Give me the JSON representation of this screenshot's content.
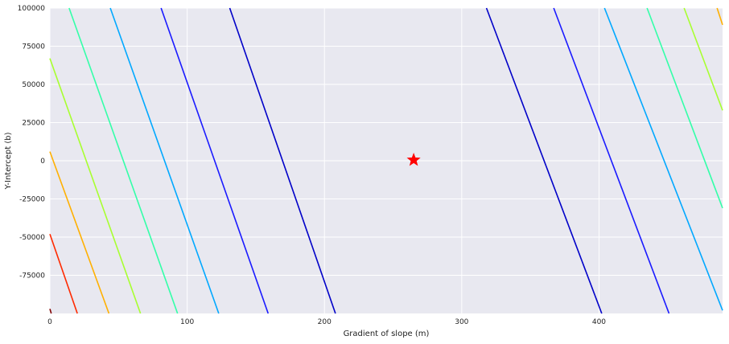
{
  "chart_data": {
    "type": "contour",
    "title": "",
    "xlabel": "Gradient of slope (m)",
    "ylabel": "Y-Intercept (b)",
    "xlim": [
      0,
      490
    ],
    "ylim": [
      -100000,
      100000
    ],
    "x_ticks": [
      0,
      100,
      200,
      300,
      400
    ],
    "x_tick_labels": [
      "0",
      "100",
      "200",
      "300",
      "400"
    ],
    "y_ticks": [
      100000,
      75000,
      50000,
      25000,
      0,
      -25000,
      -50000,
      -75000
    ],
    "y_tick_labels": [
      "100000",
      "75000",
      "50000",
      "25000",
      "0",
      "-25000",
      "-50000",
      "-75000"
    ],
    "grid": true,
    "background": "#e8e8f0",
    "grid_color": "#ffffff",
    "contours": [
      {
        "color": "#0000c8",
        "segments": [
          {
            "points": [
              [
                131,
                100000
              ],
              [
                208,
                -100000
              ]
            ]
          },
          {
            "points": [
              [
                318,
                100000
              ],
              [
                402,
                -100000
              ]
            ]
          }
        ]
      },
      {
        "color": "#1a1aff",
        "segments": [
          {
            "points": [
              [
                81,
                100000
              ],
              [
                159,
                -100000
              ]
            ]
          },
          {
            "points": [
              [
                367,
                100000
              ],
              [
                451,
                -100000
              ]
            ]
          }
        ]
      },
      {
        "color": "#00a8ff",
        "segments": [
          {
            "points": [
              [
                44,
                100000
              ],
              [
                123,
                -100000
              ]
            ]
          },
          {
            "points": [
              [
                404,
                100000
              ],
              [
                490,
                -98000
              ]
            ]
          }
        ]
      },
      {
        "color": "#33ffa8",
        "segments": [
          {
            "points": [
              [
                14,
                100000
              ],
              [
                93,
                -100000
              ]
            ]
          },
          {
            "points": [
              [
                435,
                100000
              ],
              [
                490,
                -31000
              ]
            ]
          }
        ]
      },
      {
        "color": "#a8ff30",
        "segments": [
          {
            "points": [
              [
                0,
                67000
              ],
              [
                66,
                -100000
              ]
            ]
          },
          {
            "points": [
              [
                462,
                100000
              ],
              [
                490,
                33000
              ]
            ]
          }
        ]
      },
      {
        "color": "#ffb000",
        "segments": [
          {
            "points": [
              [
                0,
                6000
              ],
              [
                43,
                -100000
              ]
            ]
          },
          {
            "points": [
              [
                486,
                100000
              ],
              [
                490,
                89000
              ]
            ]
          }
        ]
      },
      {
        "color": "#ff2a00",
        "segments": [
          {
            "points": [
              [
                0,
                -48000
              ],
              [
                20,
                -100000
              ]
            ]
          }
        ]
      },
      {
        "color": "#800000",
        "segments": [
          {
            "points": [
              [
                0,
                -97000
              ],
              [
                1,
                -100000
              ]
            ]
          }
        ]
      }
    ],
    "marker": {
      "shape": "star",
      "x": 265,
      "y": 500,
      "color": "#ff0000"
    }
  }
}
